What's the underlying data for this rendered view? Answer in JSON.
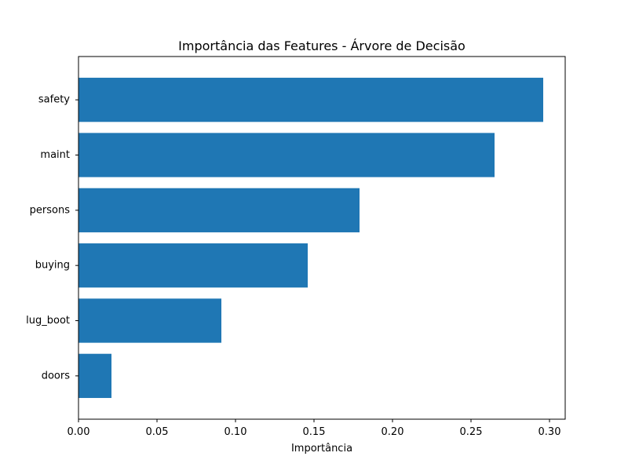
{
  "chart_data": {
    "type": "bar",
    "orientation": "horizontal",
    "title": "Importância das Features - Árvore de Decisão",
    "xlabel": "Importância",
    "ylabel": "",
    "categories": [
      "safety",
      "maint",
      "persons",
      "buying",
      "lug_boot",
      "doors"
    ],
    "values": [
      0.296,
      0.265,
      0.179,
      0.146,
      0.091,
      0.021
    ],
    "xlim": [
      0.0,
      0.31
    ],
    "xticks": [
      0.0,
      0.05,
      0.1,
      0.15,
      0.2,
      0.25,
      0.3
    ],
    "xtick_labels": [
      "0.00",
      "0.05",
      "0.10",
      "0.15",
      "0.20",
      "0.25",
      "0.30"
    ],
    "bar_color": "#1f77b4",
    "grid": false,
    "legend": "none"
  }
}
